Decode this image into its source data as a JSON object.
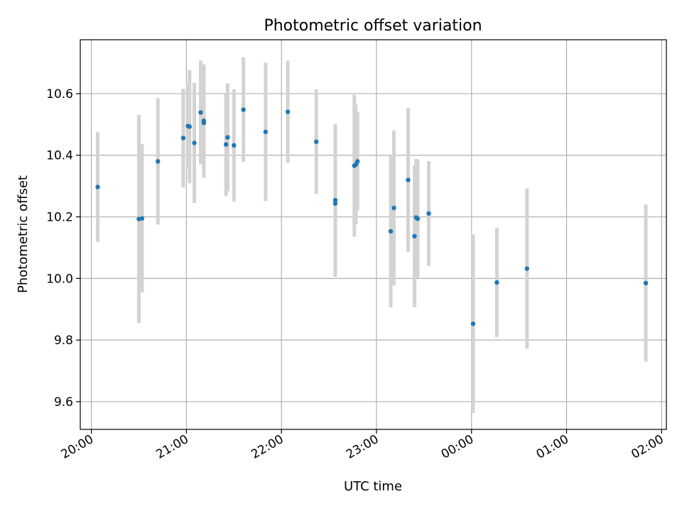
{
  "chart_data": {
    "type": "scatter",
    "title": "Photometric offset variation",
    "xlabel": "UTC time",
    "ylabel": "Photometric offset",
    "x_unit": "UTC",
    "xlim": [
      "2024-01-01 19:53",
      "2024-01-02 02:03"
    ],
    "ylim": [
      9.51,
      10.775
    ],
    "x_ticks": [
      {
        "time": "2024-01-01 20:00",
        "label": "20:00"
      },
      {
        "time": "2024-01-01 21:00",
        "label": "21:00"
      },
      {
        "time": "2024-01-01 22:00",
        "label": "22:00"
      },
      {
        "time": "2024-01-01 23:00",
        "label": "23:00"
      },
      {
        "time": "2024-01-02 00:00",
        "label": "00:00"
      },
      {
        "time": "2024-01-02 01:00",
        "label": "01:00"
      },
      {
        "time": "2024-01-02 02:00",
        "label": "02:00"
      }
    ],
    "y_ticks": [
      {
        "value": 9.6,
        "label": "9.6"
      },
      {
        "value": 9.8,
        "label": "9.8"
      },
      {
        "value": 10.0,
        "label": "10.0"
      },
      {
        "value": 10.2,
        "label": "10.2"
      },
      {
        "value": 10.4,
        "label": "10.4"
      },
      {
        "value": 10.6,
        "label": "10.6"
      }
    ],
    "grid": true,
    "x_tick_rotation": 30,
    "marker_color": "#1f77b4",
    "errorbar_color": "#d3d3d3",
    "points": [
      {
        "time": "2024-01-01 20:04",
        "y": 10.297,
        "err": 0.178
      },
      {
        "time": "2024-01-01 20:30",
        "y": 10.193,
        "err": 0.338
      },
      {
        "time": "2024-01-01 20:32",
        "y": 10.195,
        "err": 0.241
      },
      {
        "time": "2024-01-01 20:42",
        "y": 10.38,
        "err": 0.205
      },
      {
        "time": "2024-01-01 20:58",
        "y": 10.456,
        "err": 0.16
      },
      {
        "time": "2024-01-01 21:01",
        "y": 10.495,
        "err": 0.14
      },
      {
        "time": "2024-01-01 21:02",
        "y": 10.493,
        "err": 0.184
      },
      {
        "time": "2024-01-01 21:05",
        "y": 10.44,
        "err": 0.195
      },
      {
        "time": "2024-01-01 21:09",
        "y": 10.539,
        "err": 0.168
      },
      {
        "time": "2024-01-01 21:11",
        "y": 10.512,
        "err": 0.183
      },
      {
        "time": "2024-01-01 21:11",
        "y": 10.505,
        "err": 0.178
      },
      {
        "time": "2024-01-01 21:25",
        "y": 10.435,
        "err": 0.168
      },
      {
        "time": "2024-01-01 21:26",
        "y": 10.458,
        "err": 0.175
      },
      {
        "time": "2024-01-01 21:30",
        "y": 10.432,
        "err": 0.182
      },
      {
        "time": "2024-01-01 21:36",
        "y": 10.548,
        "err": 0.17
      },
      {
        "time": "2024-01-01 21:50",
        "y": 10.476,
        "err": 0.225
      },
      {
        "time": "2024-01-01 22:04",
        "y": 10.541,
        "err": 0.166
      },
      {
        "time": "2024-01-01 22:22",
        "y": 10.444,
        "err": 0.17
      },
      {
        "time": "2024-01-01 22:34",
        "y": 10.243,
        "err": 0.238
      },
      {
        "time": "2024-01-01 22:34",
        "y": 10.254,
        "err": 0.248
      },
      {
        "time": "2024-01-01 22:46",
        "y": 10.366,
        "err": 0.23
      },
      {
        "time": "2024-01-01 22:47",
        "y": 10.37,
        "err": 0.194
      },
      {
        "time": "2024-01-01 22:48",
        "y": 10.38,
        "err": 0.16
      },
      {
        "time": "2024-01-01 23:09",
        "y": 10.153,
        "err": 0.247
      },
      {
        "time": "2024-01-01 23:11",
        "y": 10.229,
        "err": 0.252
      },
      {
        "time": "2024-01-01 23:20",
        "y": 10.32,
        "err": 0.233
      },
      {
        "time": "2024-01-01 23:24",
        "y": 10.137,
        "err": 0.23
      },
      {
        "time": "2024-01-01 23:25",
        "y": 10.198,
        "err": 0.19
      },
      {
        "time": "2024-01-01 23:26",
        "y": 10.194,
        "err": 0.192
      },
      {
        "time": "2024-01-01 23:33",
        "y": 10.211,
        "err": 0.17
      },
      {
        "time": "2024-01-02 00:01",
        "y": 9.853,
        "err": 0.29
      },
      {
        "time": "2024-01-02 00:16",
        "y": 9.987,
        "err": 0.177
      },
      {
        "time": "2024-01-02 00:35",
        "y": 10.032,
        "err": 0.26
      },
      {
        "time": "2024-01-02 01:50",
        "y": 9.985,
        "err": 0.255
      }
    ]
  }
}
